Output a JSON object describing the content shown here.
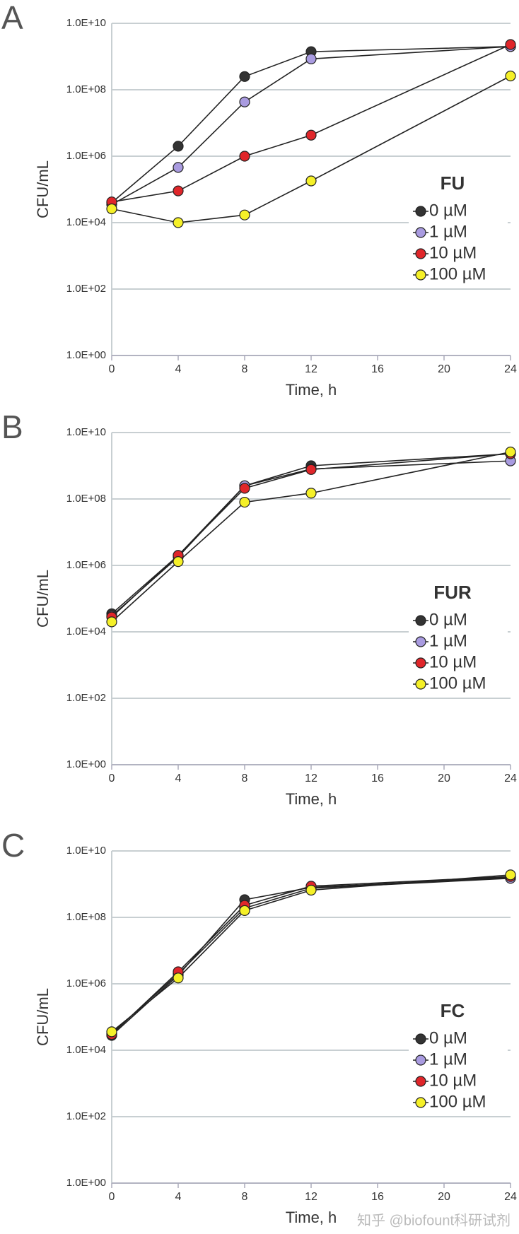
{
  "chart_data": [
    {
      "type": "line",
      "panel": "A",
      "legend_title": "FU",
      "xlabel": "Time, h",
      "ylabel": "CFU/mL",
      "x": [
        0,
        4,
        8,
        12,
        24
      ],
      "xlim": [
        0,
        24
      ],
      "xticks": [
        0,
        4,
        8,
        12,
        16,
        20,
        24
      ],
      "ylog": true,
      "ylim": [
        1,
        10000000000
      ],
      "yticks": [
        {
          "value": 1,
          "label": "1.0E+00"
        },
        {
          "value": 100,
          "label": "1.0E+02"
        },
        {
          "value": 10000,
          "label": "1.0E+04"
        },
        {
          "value": 1000000,
          "label": "1.0E+06"
        },
        {
          "value": 100000000,
          "label": "1.0E+08"
        },
        {
          "value": 10000000000,
          "label": "1.0E+10"
        }
      ],
      "grid": true,
      "legend": "right",
      "series": [
        {
          "name": "0 µM",
          "color": "#333333",
          "values": [
            40000,
            2000000,
            250000000,
            1400000000,
            2000000000
          ]
        },
        {
          "name": "1 µM",
          "color": "#a99be0",
          "values": [
            35000,
            460000,
            43000000,
            850000000,
            2000000000
          ]
        },
        {
          "name": "10 µM",
          "color": "#e0262a",
          "values": [
            42000,
            90000,
            1000000,
            4300000,
            2300000000
          ]
        },
        {
          "name": "100 µM",
          "color": "#f5f028",
          "values": [
            26000,
            10000,
            17000,
            180000,
            260000000
          ]
        }
      ]
    },
    {
      "type": "line",
      "panel": "B",
      "legend_title": "FUR",
      "xlabel": "Time, h",
      "ylabel": "CFU/mL",
      "x": [
        0,
        4,
        8,
        12,
        24
      ],
      "xlim": [
        0,
        24
      ],
      "xticks": [
        0,
        4,
        8,
        12,
        16,
        20,
        24
      ],
      "ylog": true,
      "ylim": [
        1,
        10000000000
      ],
      "yticks": [
        {
          "value": 1,
          "label": "1.0E+00"
        },
        {
          "value": 100,
          "label": "1.0E+02"
        },
        {
          "value": 10000,
          "label": "1.0E+04"
        },
        {
          "value": 1000000,
          "label": "1.0E+06"
        },
        {
          "value": 100000000,
          "label": "1.0E+08"
        },
        {
          "value": 10000000000,
          "label": "1.0E+10"
        }
      ],
      "grid": true,
      "legend": "right",
      "series": [
        {
          "name": "0 µM",
          "color": "#333333",
          "values": [
            35000,
            2000000,
            250000000,
            1000000000,
            2300000000
          ]
        },
        {
          "name": "1 µM",
          "color": "#a99be0",
          "values": [
            30000,
            1800000,
            250000000,
            800000000,
            1400000000
          ]
        },
        {
          "name": "10 µM",
          "color": "#e0262a",
          "values": [
            28000,
            2000000,
            210000000,
            770000000,
            2300000000
          ]
        },
        {
          "name": "100 µM",
          "color": "#f5f028",
          "values": [
            20000,
            1300000,
            80000000,
            150000000,
            2600000000
          ]
        }
      ]
    },
    {
      "type": "line",
      "panel": "C",
      "legend_title": "FC",
      "xlabel": "Time, h",
      "ylabel": "CFU/mL",
      "x": [
        0,
        4,
        8,
        12,
        24
      ],
      "xlim": [
        0,
        24
      ],
      "xticks": [
        0,
        4,
        8,
        12,
        16,
        20,
        24
      ],
      "ylog": true,
      "ylim": [
        1,
        10000000000
      ],
      "yticks": [
        {
          "value": 1,
          "label": "1.0E+00"
        },
        {
          "value": 100,
          "label": "1.0E+02"
        },
        {
          "value": 10000,
          "label": "1.0E+04"
        },
        {
          "value": 1000000,
          "label": "1.0E+06"
        },
        {
          "value": 100000000,
          "label": "1.0E+08"
        },
        {
          "value": 10000000000,
          "label": "1.0E+10"
        }
      ],
      "grid": true,
      "legend": "right",
      "series": [
        {
          "name": "0 µM",
          "color": "#333333",
          "values": [
            28000,
            1800000,
            340000000,
            800000000,
            1600000000
          ]
        },
        {
          "name": "1 µM",
          "color": "#a99be0",
          "values": [
            32000,
            2000000,
            190000000,
            750000000,
            1500000000
          ]
        },
        {
          "name": "10 µM",
          "color": "#e0262a",
          "values": [
            30000,
            2300000,
            230000000,
            870000000,
            1700000000
          ]
        },
        {
          "name": "100 µM",
          "color": "#f5f028",
          "values": [
            36000,
            1500000,
            160000000,
            660000000,
            1900000000
          ]
        }
      ]
    }
  ],
  "watermark": "知乎 @biofount科研试剂"
}
